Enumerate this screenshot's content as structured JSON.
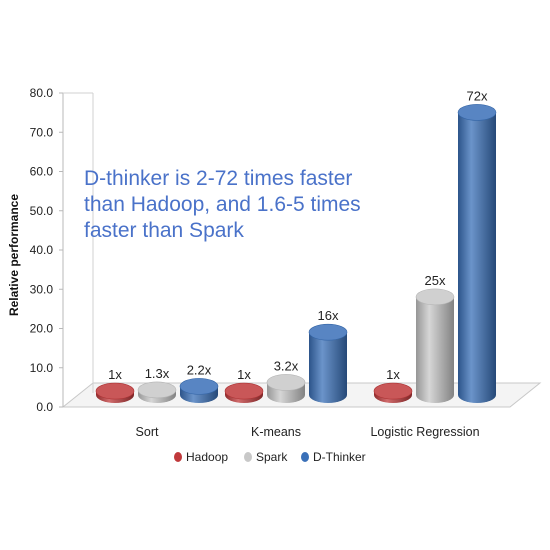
{
  "chart_data": {
    "type": "bar",
    "style": "3d-cylinder",
    "ylabel": "Relative performance",
    "xlabel": "",
    "ylim": [
      0,
      80
    ],
    "yticks": [
      "0.0",
      "10.0",
      "20.0",
      "30.0",
      "40.0",
      "50.0",
      "60.0",
      "70.0",
      "80.0"
    ],
    "categories": [
      "Sort",
      "K-means",
      "Logistic Regression"
    ],
    "series": [
      {
        "name": "Hadoop",
        "color": "#c0393b",
        "values": [
          1,
          1,
          1
        ],
        "labels": [
          "1x",
          "1x",
          "1x"
        ]
      },
      {
        "name": "Spark",
        "color": "#c8c8c8",
        "values": [
          1.3,
          3.2,
          25
        ],
        "labels": [
          "1.3x",
          "3.2x",
          "25x"
        ]
      },
      {
        "name": "D-Thinker",
        "color": "#3a70b8",
        "values": [
          2.2,
          16,
          72
        ],
        "labels": [
          "2.2x",
          "16x",
          "72x"
        ]
      }
    ],
    "annotation": "D-thinker is 2-72 times faster than Hadoop, and 1.6-5 times faster than Spark",
    "legend_position": "bottom",
    "grid": false
  }
}
